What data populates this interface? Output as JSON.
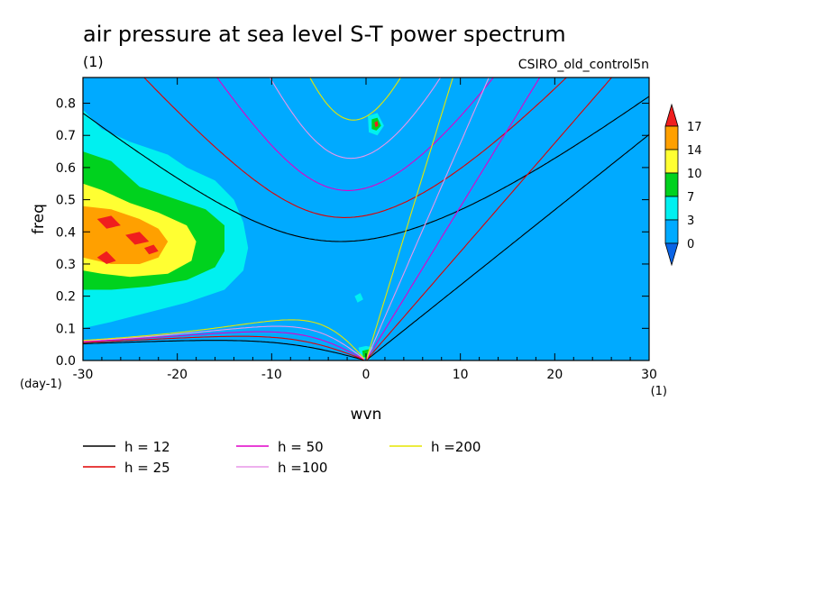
{
  "chart_data": {
    "type": "heatmap",
    "title": "air pressure at sea level S-T power spectrum",
    "units": "(1)",
    "source_label": "CSIRO_old_control5n",
    "xlabel": "wvn",
    "ylabel": "freq",
    "x_units": "(1)",
    "y_units": "(day-1)",
    "xlim": [
      -30,
      30
    ],
    "ylim": [
      0,
      0.88
    ],
    "x_ticks": [
      -30,
      -20,
      -10,
      0,
      10,
      20,
      30
    ],
    "y_ticks": [
      0.0,
      0.1,
      0.2,
      0.3,
      0.4,
      0.5,
      0.6,
      0.7,
      0.8
    ],
    "x_tick_labels": [
      "-30",
      "-20",
      "-10",
      "0",
      "10",
      "20",
      "30"
    ],
    "y_tick_labels": [
      "0.0",
      "0.1",
      "0.2",
      "0.3",
      "0.4",
      "0.5",
      "0.6",
      "0.7",
      "0.8"
    ],
    "colorbar": {
      "levels": [
        0,
        3,
        7,
        10,
        14,
        17
      ],
      "level_labels": [
        "0",
        "3",
        "7",
        "10",
        "14",
        "17"
      ],
      "colors": [
        "#0a64e6",
        "#00aaff",
        "#00f0f0",
        "#00d21e",
        "#ffff32",
        "#ffa000",
        "#f01e1e"
      ]
    },
    "background_level_color": "#00aaff",
    "power_regions": [
      {
        "level": 3,
        "color": "#00f0f0",
        "points": [
          [
            -30,
            0.78
          ],
          [
            -28,
            0.72
          ],
          [
            -25,
            0.68
          ],
          [
            -21,
            0.64
          ],
          [
            -19,
            0.6
          ],
          [
            -16,
            0.56
          ],
          [
            -14,
            0.5
          ],
          [
            -13,
            0.43
          ],
          [
            -12.5,
            0.35
          ],
          [
            -13,
            0.28
          ],
          [
            -15,
            0.22
          ],
          [
            -19,
            0.18
          ],
          [
            -23,
            0.15
          ],
          [
            -27,
            0.12
          ],
          [
            -30,
            0.1
          ]
        ]
      },
      {
        "level": 7,
        "color": "#00d21e",
        "points": [
          [
            -30,
            0.65
          ],
          [
            -27,
            0.62
          ],
          [
            -24,
            0.54
          ],
          [
            -20,
            0.5
          ],
          [
            -17,
            0.47
          ],
          [
            -15,
            0.42
          ],
          [
            -15,
            0.34
          ],
          [
            -16,
            0.29
          ],
          [
            -19,
            0.25
          ],
          [
            -23,
            0.23
          ],
          [
            -27,
            0.22
          ],
          [
            -30,
            0.22
          ]
        ]
      },
      {
        "level": 10,
        "color": "#ffff32",
        "points": [
          [
            -30,
            0.55
          ],
          [
            -28,
            0.53
          ],
          [
            -25,
            0.49
          ],
          [
            -22,
            0.46
          ],
          [
            -19,
            0.42
          ],
          [
            -18,
            0.37
          ],
          [
            -18.5,
            0.31
          ],
          [
            -21,
            0.27
          ],
          [
            -25,
            0.26
          ],
          [
            -28,
            0.27
          ],
          [
            -30,
            0.28
          ]
        ]
      },
      {
        "level": 14,
        "color": "#ffa000",
        "points": [
          [
            -30,
            0.48
          ],
          [
            -27,
            0.47
          ],
          [
            -24,
            0.44
          ],
          [
            -22,
            0.41
          ],
          [
            -21,
            0.37
          ],
          [
            -22,
            0.32
          ],
          [
            -24,
            0.3
          ],
          [
            -27,
            0.3
          ],
          [
            -30,
            0.32
          ]
        ]
      },
      {
        "level": 17,
        "color": "#f01e1e",
        "points": [
          [
            -28.5,
            0.44
          ],
          [
            -27,
            0.45
          ],
          [
            -26,
            0.42
          ],
          [
            -27.5,
            0.41
          ]
        ]
      },
      {
        "level": 17,
        "color": "#f01e1e",
        "points": [
          [
            -25.5,
            0.39
          ],
          [
            -24,
            0.4
          ],
          [
            -23,
            0.37
          ],
          [
            -24.5,
            0.36
          ]
        ]
      },
      {
        "level": 17,
        "color": "#f01e1e",
        "points": [
          [
            -28.5,
            0.32
          ],
          [
            -27.5,
            0.34
          ],
          [
            -26.5,
            0.31
          ],
          [
            -27.5,
            0.3
          ]
        ]
      },
      {
        "level": 17,
        "color": "#f01e1e",
        "points": [
          [
            -23.5,
            0.35
          ],
          [
            -22.5,
            0.36
          ],
          [
            -22,
            0.34
          ],
          [
            -23,
            0.33
          ]
        ]
      },
      {
        "level": 3,
        "color": "#00f0f0",
        "points": [
          [
            0.2,
            0.76
          ],
          [
            1.2,
            0.77
          ],
          [
            1.9,
            0.73
          ],
          [
            1.2,
            0.7
          ],
          [
            0.3,
            0.71
          ]
        ]
      },
      {
        "level": 7,
        "color": "#00d21e",
        "points": [
          [
            0.6,
            0.75
          ],
          [
            1.2,
            0.755
          ],
          [
            1.6,
            0.73
          ],
          [
            1.1,
            0.715
          ],
          [
            0.6,
            0.72
          ]
        ]
      },
      {
        "level": 17,
        "color": "#f01e1e",
        "points": [
          [
            0.9,
            0.74
          ],
          [
            1.2,
            0.745
          ],
          [
            1.3,
            0.73
          ],
          [
            1,
            0.725
          ]
        ]
      },
      {
        "level": 3,
        "color": "#00f0f0",
        "points": [
          [
            -0.8,
            0.04
          ],
          [
            0,
            0.045
          ],
          [
            0.8,
            0.04
          ],
          [
            0.5,
            0.005
          ],
          [
            -0.5,
            0.005
          ]
        ]
      },
      {
        "level": 7,
        "color": "#00d21e",
        "points": [
          [
            -0.4,
            0.03
          ],
          [
            0.3,
            0.035
          ],
          [
            0.5,
            0.01
          ],
          [
            -0.3,
            0.01
          ]
        ]
      },
      {
        "level": 3,
        "color": "#00f0f0",
        "points": [
          [
            -1.2,
            0.2
          ],
          [
            -0.6,
            0.21
          ],
          [
            -0.3,
            0.19
          ],
          [
            -0.9,
            0.18
          ]
        ]
      }
    ],
    "series": [
      {
        "name": "h = 12",
        "color": "#000000",
        "label": "h = 12",
        "equivalent_depth": 12
      },
      {
        "name": "h = 25",
        "color": "#e00000",
        "label": "h = 25",
        "equivalent_depth": 25
      },
      {
        "name": "h = 50",
        "color": "#e000c8",
        "label": "h = 50",
        "equivalent_depth": 50
      },
      {
        "name": "h =100",
        "color": "#e896e8",
        "label": "h =100",
        "equivalent_depth": 100
      },
      {
        "name": "h =200",
        "color": "#e6e600",
        "label": "h =200",
        "equivalent_depth": 200
      }
    ],
    "legend": {
      "position": "below"
    }
  }
}
